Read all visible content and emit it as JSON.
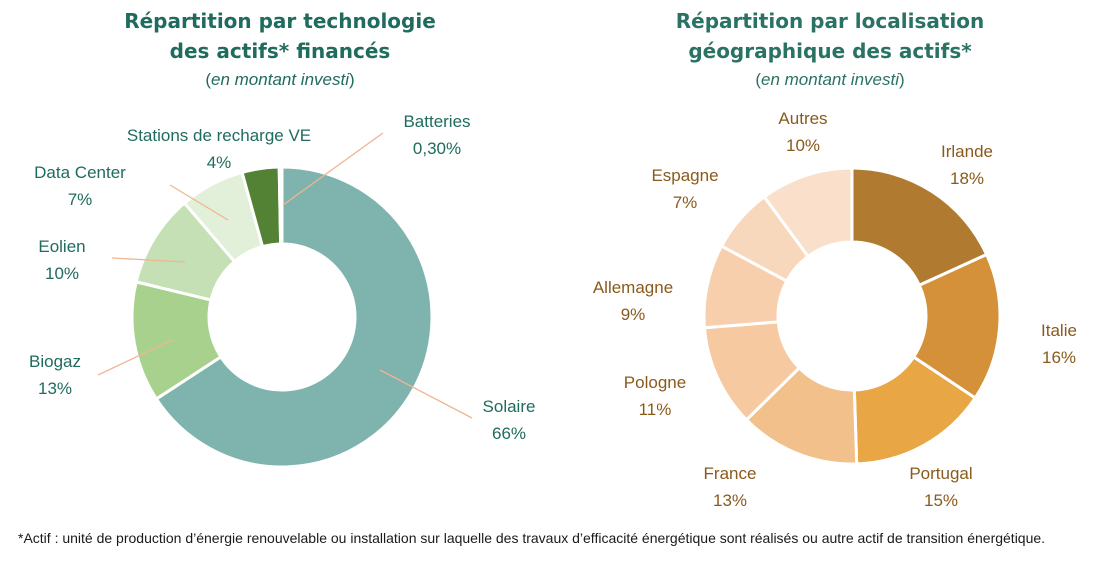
{
  "chart_data": [
    {
      "type": "pie",
      "donut": true,
      "title": [
        "Répartition par technologie",
        "des actifs* financés"
      ],
      "subtitle": "en montant investi",
      "slices": [
        {
          "label": "Solaire",
          "value": 66,
          "display": "66%",
          "color": "#7fb3ae"
        },
        {
          "label": "Biogaz",
          "value": 13,
          "display": "13%",
          "color": "#a8d18d"
        },
        {
          "label": "Eolien",
          "value": 10,
          "display": "10%",
          "color": "#c5e0b4"
        },
        {
          "label": "Data Center",
          "value": 7,
          "display": "7%",
          "color": "#e2f0d9"
        },
        {
          "label": "Stations de recharge VE",
          "value": 4,
          "display": "4%",
          "color": "#548235"
        },
        {
          "label": "Batteries",
          "value": 0.3,
          "display": "0,30%",
          "color": "#38761d"
        }
      ]
    },
    {
      "type": "pie",
      "donut": true,
      "title": [
        "Répartition par localisation",
        "géographique des actifs*"
      ],
      "subtitle": "en montant investi",
      "slices": [
        {
          "label": "Irlande",
          "value": 18,
          "display": "18%",
          "color": "#b07a30"
        },
        {
          "label": "Italie",
          "value": 16,
          "display": "16%",
          "color": "#d4913a"
        },
        {
          "label": "Portugal",
          "value": 15,
          "display": "15%",
          "color": "#e9a645"
        },
        {
          "label": "France",
          "value": 13,
          "display": "13%",
          "color": "#f2c08b"
        },
        {
          "label": "Pologne",
          "value": 11,
          "display": "11%",
          "color": "#f6c9a0"
        },
        {
          "label": "Allemagne",
          "value": 9,
          "display": "9%",
          "color": "#f7cfad"
        },
        {
          "label": "Espagne",
          "value": 7,
          "display": "7%",
          "color": "#f8d8bd"
        },
        {
          "label": "Autres",
          "value": 10,
          "display": "10%",
          "color": "#fae0ca"
        }
      ]
    }
  ],
  "footnote": "*Actif : unité de production d’énergie renouvelable ou installation sur laquelle des travaux d’efficacité énergétique sont réalisés ou autre actif de transition énergétique.",
  "colors": {
    "tech_label": "#1f6b5e",
    "geo_label": "#8a5a1c",
    "leader_line": "#f2b493"
  }
}
